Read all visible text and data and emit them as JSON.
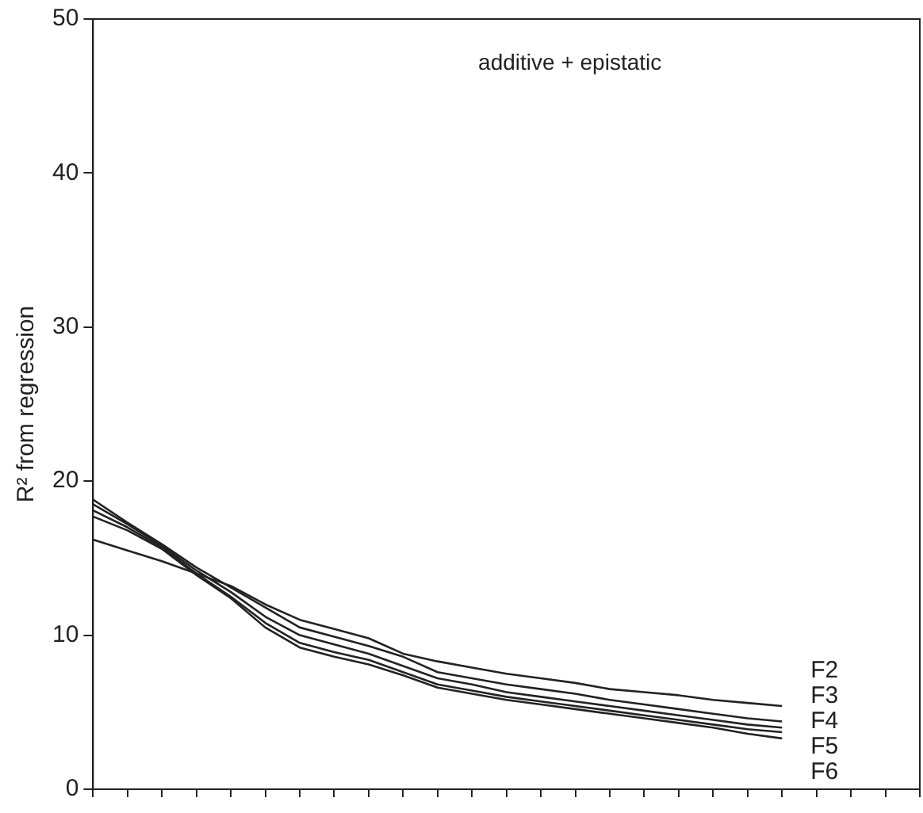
{
  "chart_data": {
    "type": "line",
    "ylabel": "R² from regression",
    "annotations": [
      "additive + epistatic"
    ],
    "categories": [
      null,
      null,
      null,
      null,
      null,
      null,
      null,
      null,
      null,
      null,
      null,
      null,
      null,
      null,
      null,
      null,
      null,
      null,
      null,
      null,
      null,
      null,
      null,
      null,
      null
    ],
    "ylim": [
      0,
      50
    ],
    "yticks": [
      0,
      10,
      20,
      30,
      40,
      50
    ],
    "tick_labels": "y",
    "grid": false,
    "legend": false,
    "marker": "none",
    "line_style": "solid",
    "series": [
      {
        "name": "F2",
        "color": "#222222",
        "values": [
          16.2,
          15.5,
          14.8,
          14.0,
          13.2,
          12.0,
          11.0,
          10.4,
          9.8,
          8.8,
          8.3,
          7.9,
          7.5,
          7.2,
          6.9,
          6.5,
          6.3,
          6.1,
          5.8,
          5.6,
          5.4,
          null,
          null,
          null,
          null
        ]
      },
      {
        "name": "F3",
        "color": "#222222",
        "values": [
          18.8,
          17.3,
          15.9,
          14.4,
          13.1,
          11.8,
          10.5,
          9.9,
          9.3,
          8.6,
          7.6,
          7.2,
          6.8,
          6.5,
          6.2,
          5.8,
          5.5,
          5.2,
          4.9,
          4.6,
          4.4,
          null,
          null,
          null,
          null
        ]
      },
      {
        "name": "F4",
        "color": "#222222",
        "values": [
          18.5,
          17.2,
          15.8,
          14.2,
          12.8,
          11.2,
          10.0,
          9.4,
          8.8,
          8.0,
          7.2,
          6.8,
          6.3,
          6.0,
          5.7,
          5.4,
          5.1,
          4.8,
          4.5,
          4.2,
          4.0,
          null,
          null,
          null,
          null
        ]
      },
      {
        "name": "F5",
        "color": "#222222",
        "values": [
          18.1,
          17.0,
          15.7,
          14.0,
          12.5,
          10.8,
          9.5,
          8.9,
          8.4,
          7.6,
          6.8,
          6.4,
          6.0,
          5.7,
          5.4,
          5.1,
          4.8,
          4.5,
          4.2,
          3.9,
          3.7,
          null,
          null,
          null,
          null
        ]
      },
      {
        "name": "F6",
        "color": "#222222",
        "values": [
          17.7,
          16.8,
          15.6,
          13.9,
          12.4,
          10.5,
          9.2,
          8.6,
          8.1,
          7.4,
          6.6,
          6.2,
          5.8,
          5.5,
          5.2,
          4.9,
          4.6,
          4.3,
          4.0,
          3.6,
          3.3,
          null,
          null,
          null,
          null
        ]
      }
    ]
  }
}
